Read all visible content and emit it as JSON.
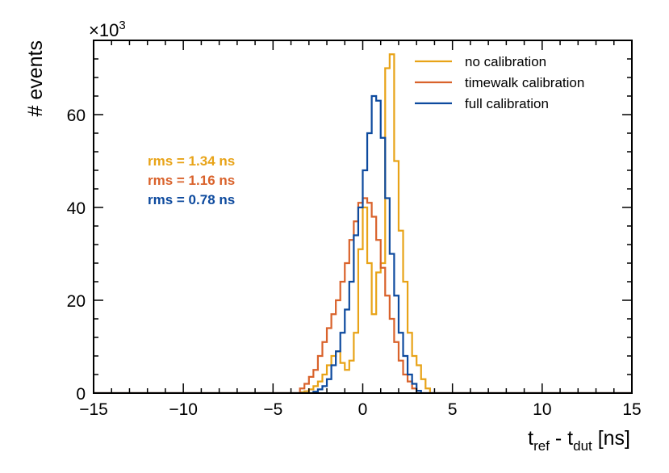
{
  "chart_data": {
    "type": "histogram",
    "xlabel": {
      "main": "t",
      "sub1": "ref",
      "mid": " - t",
      "sub2": "dut",
      "end": " [ns]"
    },
    "ylabel": "# events",
    "y_multiplier": {
      "base": "×10",
      "exp": "3"
    },
    "xlim": [
      -15,
      15
    ],
    "ylim": [
      0,
      76
    ],
    "x_ticks": [
      -15,
      -10,
      -5,
      0,
      5,
      10,
      15
    ],
    "x_tick_labels": [
      "−15",
      "−10",
      "−5",
      "0",
      "5",
      "10",
      "15"
    ],
    "y_ticks": [
      0,
      20,
      40,
      60
    ],
    "y_tick_labels": [
      "0",
      "20",
      "40",
      "60"
    ],
    "grid": false,
    "legend_position": "top-right",
    "bin_width": 0.25,
    "series": [
      {
        "name": "no calibration",
        "color": "#E8A317",
        "rms": "rms = 1.34 ns",
        "start": -3.5,
        "values": [
          0.2,
          0.4,
          0.8,
          1.5,
          2.5,
          4.0,
          6.0,
          8.0,
          9.0,
          6.5,
          5.0,
          7.0,
          13.0,
          31.0,
          40.0,
          28.0,
          17.0,
          26.0,
          28.0,
          70.0,
          73.0,
          50.0,
          35.0,
          24.0,
          13.0,
          8.0,
          6.0,
          3.0,
          1.0
        ]
      },
      {
        "name": "timewalk calibration",
        "color": "#D9622B",
        "rms": "rms = 1.16 ns",
        "start": -3.5,
        "values": [
          1.0,
          2.0,
          3.5,
          5.0,
          8.0,
          11.0,
          14.0,
          17.0,
          20.0,
          24.0,
          28.0,
          33.0,
          37.0,
          41.0,
          42.0,
          41.0,
          38.0,
          33.0,
          27.0,
          21.0,
          16.0,
          11.0,
          7.0,
          4.0,
          2.5,
          1.0
        ]
      },
      {
        "name": "full calibration",
        "color": "#0D4A9E",
        "rms": "rms = 0.78 ns",
        "start": -2.75,
        "values": [
          0.3,
          0.8,
          1.5,
          3.0,
          6.0,
          9.0,
          13.0,
          18.0,
          24.0,
          34.0,
          40.0,
          48.0,
          56.0,
          64.0,
          63.0,
          55.0,
          42.0,
          30.0,
          21.0,
          13.0,
          8.0,
          4.0,
          2.0,
          0.5
        ]
      }
    ]
  }
}
